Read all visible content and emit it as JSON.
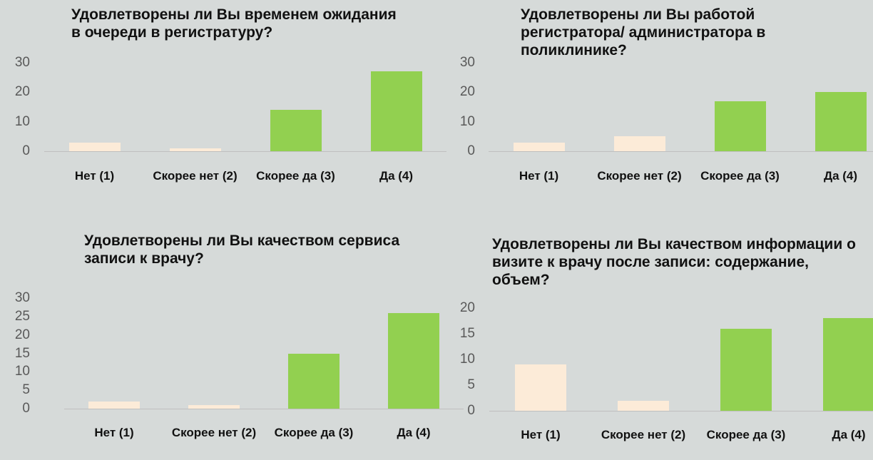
{
  "chart_data": [
    {
      "type": "bar",
      "title": "Удовлетворены ли Вы временем ожидания в очереди в регистратуру?",
      "categories": [
        "Нет (1)",
        "Скорее нет (2)",
        "Скорее да (3)",
        "Да (4)"
      ],
      "values": [
        3,
        1,
        14,
        27
      ],
      "colors": [
        "#fcebd8",
        "#fcebd8",
        "#92d050",
        "#92d050"
      ],
      "ylim": [
        0,
        30
      ],
      "yticks": [
        0,
        10,
        20,
        30
      ]
    },
    {
      "type": "bar",
      "title": "Удовлетворены ли Вы работой регистратора/ администратора в поликлинике?",
      "categories": [
        "Нет (1)",
        "Скорее нет (2)",
        "Скорее да (3)",
        "Да (4)"
      ],
      "values": [
        3,
        5,
        17,
        20
      ],
      "colors": [
        "#fcebd8",
        "#fcebd8",
        "#92d050",
        "#92d050"
      ],
      "ylim": [
        0,
        30
      ],
      "yticks": [
        0,
        10,
        20,
        30
      ]
    },
    {
      "type": "bar",
      "title": "Удовлетворены ли Вы качеством сервиса записи к врачу?",
      "categories": [
        "Нет (1)",
        "Скорее нет (2)",
        "Скорее да (3)",
        "Да (4)"
      ],
      "values": [
        2,
        1,
        15,
        26
      ],
      "colors": [
        "#fcebd8",
        "#fcebd8",
        "#92d050",
        "#92d050"
      ],
      "ylim": [
        0,
        30
      ],
      "yticks": [
        0,
        5,
        10,
        15,
        20,
        25,
        30
      ]
    },
    {
      "type": "bar",
      "title": "Удовлетворены ли Вы качеством информации о визите к врачу после записи: содержание, объем?",
      "categories": [
        "Нет (1)",
        "Скорее нет (2)",
        "Скорее да (3)",
        "Да (4)"
      ],
      "values": [
        9,
        2,
        16,
        18
      ],
      "colors": [
        "#fcebd8",
        "#fcebd8",
        "#92d050",
        "#92d050"
      ],
      "ylim": [
        0,
        20
      ],
      "yticks": [
        0,
        5,
        10,
        15,
        20
      ]
    }
  ]
}
